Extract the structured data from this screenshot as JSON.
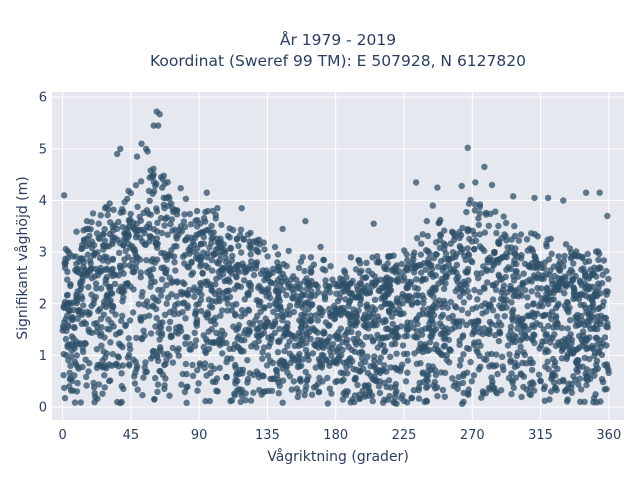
{
  "chart_data": {
    "type": "scatter",
    "title_line1": "År 1979 - 2019",
    "title_line2": "Koordinat (Sweref 99 TM): E 507928, N 6127820",
    "xlabel": "Vågriktning (grader)",
    "ylabel": "Signifikant våghöjd (m)",
    "xlim": [
      -7,
      370
    ],
    "ylim": [
      -0.25,
      6.1
    ],
    "xticks": [
      0,
      45,
      90,
      135,
      180,
      225,
      270,
      315,
      360
    ],
    "yticks": [
      0,
      1,
      2,
      3,
      4,
      5,
      6
    ],
    "grid": true,
    "marker_color": "#2f5069",
    "plot_bg": "#e5e8ef",
    "envelope_note_points": [
      [
        0,
        2.6
      ],
      [
        10,
        3.0
      ],
      [
        30,
        3.5
      ],
      [
        50,
        3.9
      ],
      [
        60,
        4.2
      ],
      [
        75,
        3.9
      ],
      [
        90,
        3.5
      ],
      [
        110,
        3.2
      ],
      [
        135,
        2.7
      ],
      [
        160,
        2.5
      ],
      [
        180,
        2.4
      ],
      [
        200,
        2.4
      ],
      [
        225,
        2.7
      ],
      [
        250,
        3.2
      ],
      [
        270,
        3.6
      ],
      [
        285,
        3.4
      ],
      [
        300,
        3.0
      ],
      [
        330,
        2.8
      ],
      [
        360,
        2.6
      ]
    ],
    "outliers": [
      [
        62,
        5.72
      ],
      [
        64,
        5.67
      ],
      [
        63,
        5.45
      ],
      [
        60,
        5.45
      ],
      [
        52,
        5.1
      ],
      [
        55,
        5.0
      ],
      [
        56,
        4.95
      ],
      [
        49,
        4.85
      ],
      [
        38,
        5.0
      ],
      [
        36,
        4.9
      ],
      [
        267,
        5.02
      ],
      [
        278,
        4.65
      ],
      [
        233,
        4.35
      ],
      [
        247,
        4.25
      ],
      [
        263,
        4.28
      ],
      [
        272,
        4.35
      ],
      [
        283,
        4.3
      ],
      [
        330,
        4.0
      ],
      [
        345,
        4.15
      ],
      [
        354,
        4.15
      ],
      [
        1,
        4.1
      ],
      [
        20,
        3.75
      ],
      [
        28,
        3.85
      ],
      [
        160,
        3.6
      ],
      [
        205,
        3.55
      ],
      [
        118,
        3.85
      ],
      [
        95,
        4.15
      ],
      [
        102,
        3.85
      ],
      [
        145,
        3.45
      ],
      [
        297,
        4.08
      ],
      [
        311,
        4.05
      ],
      [
        320,
        4.05
      ],
      [
        359,
        3.7
      ],
      [
        244,
        3.9
      ],
      [
        240,
        3.6
      ],
      [
        190,
        2.9
      ],
      [
        170,
        3.1
      ],
      [
        140,
        3.1
      ],
      [
        130,
        3.15
      ]
    ]
  }
}
